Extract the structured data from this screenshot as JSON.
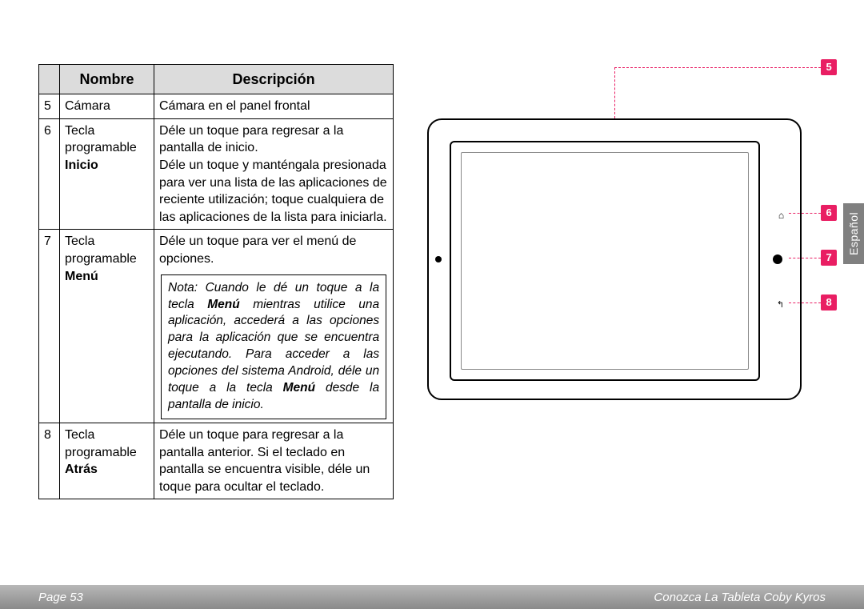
{
  "table": {
    "headers": {
      "num": "",
      "name": "Nombre",
      "desc": "Descripción"
    },
    "header_bg": "#dcdcdc",
    "rows": [
      {
        "num": "5",
        "name_plain": "Cámara",
        "name_bold": "",
        "desc": "Cámara en el panel frontal"
      },
      {
        "num": "6",
        "name_plain": "Tecla programable",
        "name_bold": "Inicio",
        "desc": "Déle un toque para regresar a la pantalla de inicio.\nDéle un toque y manténgala presionada para ver una lista de las aplicaciones de reciente utilización; toque cualquiera de las aplicaciones de la lista para iniciarla."
      },
      {
        "num": "7",
        "name_plain": "Tecla programable",
        "name_bold": "Menú",
        "desc": "Déle un toque para ver el menú de opciones.",
        "note_parts": {
          "pre": "Nota: Cuando le dé un toque a la tecla ",
          "b1": "Menú",
          "mid": " mientras utilice una aplicación, accederá a las opciones para la aplicación que se encuentra ejecutando. Para acceder a las opciones del sistema Android, déle un toque a la tecla ",
          "b2": "Menú",
          "post": " desde la pantalla de inicio."
        }
      },
      {
        "num": "8",
        "name_plain": "Tecla programable",
        "name_bold": "Atrás",
        "desc": "Déle un toque para regresar a la pantalla anterior. Si el teclado en pantalla se encuentra visible, déle un toque para ocultar el teclado."
      }
    ]
  },
  "diagram": {
    "callouts": [
      {
        "n": "5",
        "pos": "top-right"
      },
      {
        "n": "6",
        "pos": "right-1"
      },
      {
        "n": "7",
        "pos": "right-2"
      },
      {
        "n": "8",
        "pos": "right-3"
      }
    ],
    "badge_color": "#e91e63",
    "badge_text_color": "#ffffff"
  },
  "lang_tab": "Español",
  "footer": {
    "left": "Page 53",
    "right": "Conozca La Tableta Coby Kyros"
  },
  "colors": {
    "footer_grad_top": "#b8b8b8",
    "footer_grad_bottom": "#8a8a8a",
    "lang_tab_bg": "#808080"
  }
}
